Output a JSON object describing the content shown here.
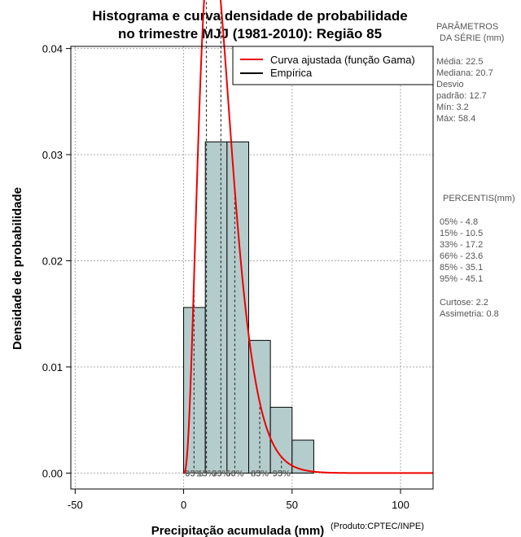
{
  "chart_data": {
    "type": "bar",
    "title_line1": "Histograma e curva densidade de probabilidade",
    "title_line2": "no trimestre MJJ (1981-2010): Região 85",
    "xlabel": "Precipitação acumulada (mm)",
    "ylabel": "Densidade de probabilidade",
    "credit": "(Produto:CPTEC/INPE)",
    "xlim": [
      -52,
      115
    ],
    "ylim": [
      -0.0015,
      0.0402
    ],
    "x_ticks": [
      -50,
      0,
      50,
      100
    ],
    "x_tick_labels": [
      "-50",
      "0",
      "50",
      "100"
    ],
    "y_ticks": [
      0.0,
      0.01,
      0.02,
      0.03,
      0.04
    ],
    "y_tick_labels": [
      "0.00",
      "0.01",
      "0.02",
      "0.03",
      "0.04"
    ],
    "grid": true,
    "bins": [
      {
        "x0": 0,
        "x1": 10,
        "density": 0.0156
      },
      {
        "x0": 10,
        "x1": 20,
        "density": 0.0312
      },
      {
        "x0": 20,
        "x1": 30,
        "density": 0.0312
      },
      {
        "x0": 30,
        "x1": 40,
        "density": 0.0125
      },
      {
        "x0": 40,
        "x1": 50,
        "density": 0.0062
      },
      {
        "x0": 50,
        "x1": 60,
        "density": 0.0031
      }
    ],
    "gamma_fit": {
      "shape": 3.8,
      "scale": 4.6
    },
    "bar_color": "#b5cccc",
    "curve_color": "#ee0000",
    "legend": {
      "position": "top-right",
      "entries": [
        {
          "label": "Curva ajustada (função Gama)",
          "color": "#ee0000"
        },
        {
          "label": "Empírica",
          "color": "#000000"
        }
      ]
    },
    "percentile_lines": [
      {
        "x": 4.8,
        "label": "05%"
      },
      {
        "x": 10.5,
        "label": "15%"
      },
      {
        "x": 17.2,
        "label": "33%"
      },
      {
        "x": 23.6,
        "label": "66%"
      },
      {
        "x": 35.1,
        "label": "85%"
      },
      {
        "x": 45.1,
        "label": "95%"
      }
    ]
  },
  "side_panel": {
    "params_title_1": "PARÂMETROS",
    "params_title_2": "DA SÉRIE (mm)",
    "params": [
      "Média:  22.5",
      "Mediana:  20.7",
      "Desvio",
      "padrão:  12.7",
      "Mín:  3.2",
      "Máx:  58.4"
    ],
    "percentis_title": "PERCENTIS(mm)",
    "percentis": [
      "05% -   4.8",
      "15% -   10.5",
      "33% -   17.2",
      "66% -   23.6",
      "85% -   35.1",
      "95% -   45.1"
    ],
    "stats": [
      "Curtose:  2.2",
      "Assimetria:  0.8"
    ]
  }
}
